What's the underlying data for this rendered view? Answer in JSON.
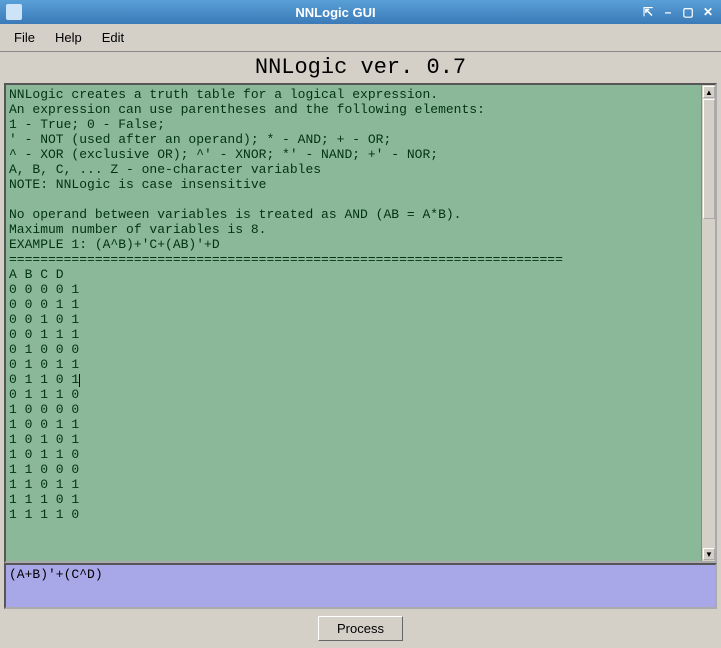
{
  "window": {
    "title": "NNLogic GUI"
  },
  "menu": {
    "file": "File",
    "help": "Help",
    "edit": "Edit"
  },
  "version_label": "NNLogic ver. 0.7",
  "output": {
    "help_lines": [
      "NNLogic creates a truth table for a logical expression.",
      "An expression can use parentheses and the following elements:",
      "1 - True; 0 - False;",
      "' - NOT (used after an operand); * - AND; + - OR;",
      "^ - XOR (exclusive OR); ^' - XNOR; *' - NAND; +' - NOR;",
      "A, B, C, ... Z - one-character variables",
      "NOTE: NNLogic is case insensitive",
      "",
      "No operand between variables is treated as AND (AB = A*B).",
      "Maximum number of variables is 8.",
      "EXAMPLE 1: (A^B)+'C+(AB)'+D"
    ],
    "separator": "=======================================================================",
    "header": "A B C D",
    "rows": [
      "0 0 0 0 1",
      "0 0 0 1 1",
      "0 0 1 0 1",
      "0 0 1 1 1",
      "0 1 0 0 0",
      "0 1 0 1 1",
      "0 1 1 0 1",
      "0 1 1 1 0",
      "1 0 0 0 0",
      "1 0 0 1 1",
      "1 0 1 0 1",
      "1 0 1 1 0",
      "1 1 0 0 0",
      "1 1 0 1 1",
      "1 1 1 0 1",
      "1 1 1 1 0"
    ],
    "cursor_row_index": 6
  },
  "input": {
    "expression": "(A+B)'+(C^D)"
  },
  "buttons": {
    "process": "Process"
  },
  "colors": {
    "titlebar_start": "#5aa0d8",
    "titlebar_end": "#3a7ab8",
    "chrome_bg": "#d4d0c8",
    "output_bg": "#8cb89a",
    "output_fg": "#003311",
    "input_bg": "#a8a8e8"
  }
}
